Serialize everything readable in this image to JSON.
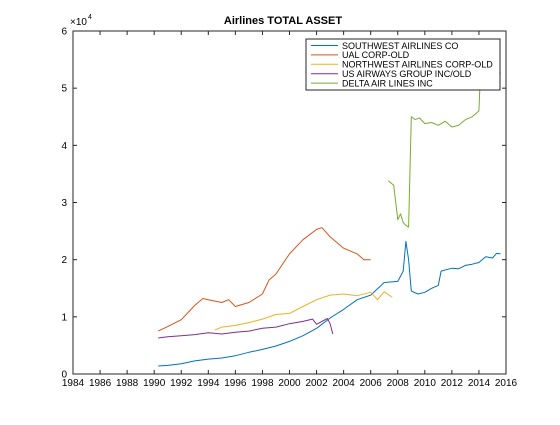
{
  "chart_data": {
    "type": "line",
    "title": "Airlines TOTAL ASSET",
    "xlabel": "",
    "ylabel": "",
    "xlim": [
      1984,
      2016
    ],
    "ylim": [
      0,
      60000
    ],
    "y_multiplier_label": "×10",
    "y_multiplier_exponent": "4",
    "x_ticks": [
      1984,
      1986,
      1988,
      1990,
      1992,
      1994,
      1996,
      1998,
      2000,
      2002,
      2004,
      2006,
      2008,
      2010,
      2012,
      2014,
      2016
    ],
    "x_tick_labels": [
      "1984",
      "1986",
      "1988",
      "1990",
      "1992",
      "1994",
      "1996",
      "1998",
      "2000",
      "2002",
      "2004",
      "2006",
      "2008",
      "2010",
      "2012",
      "2014",
      "2016"
    ],
    "y_ticks": [
      0,
      10000,
      20000,
      30000,
      40000,
      50000,
      60000
    ],
    "y_tick_labels": [
      "0",
      "1",
      "2",
      "3",
      "4",
      "5",
      "6"
    ],
    "grid": false,
    "legend_position": "top-right",
    "series": [
      {
        "name": "SOUTHWEST AIRLINES CO",
        "color": "#0072BD",
        "points": [
          [
            1990.3,
            1400
          ],
          [
            1991.0,
            1500
          ],
          [
            1992.0,
            1800
          ],
          [
            1993.0,
            2300
          ],
          [
            1994.0,
            2600
          ],
          [
            1995.0,
            2800
          ],
          [
            1996.0,
            3200
          ],
          [
            1997.0,
            3800
          ],
          [
            1998.0,
            4300
          ],
          [
            1999.0,
            4900
          ],
          [
            2000.0,
            5700
          ],
          [
            2001.0,
            6700
          ],
          [
            2002.0,
            8000
          ],
          [
            2003.0,
            9800
          ],
          [
            2004.0,
            11300
          ],
          [
            2005.0,
            13000
          ],
          [
            2006.0,
            13800
          ],
          [
            2007.0,
            16000
          ],
          [
            2008.0,
            16200
          ],
          [
            2008.4,
            18000
          ],
          [
            2008.6,
            23200
          ],
          [
            2008.8,
            20000
          ],
          [
            2009.0,
            14500
          ],
          [
            2009.5,
            14000
          ],
          [
            2010.0,
            14300
          ],
          [
            2010.5,
            15000
          ],
          [
            2011.0,
            15500
          ],
          [
            2011.2,
            18000
          ],
          [
            2012.0,
            18500
          ],
          [
            2012.5,
            18400
          ],
          [
            2013.0,
            19000
          ],
          [
            2013.5,
            19200
          ],
          [
            2014.0,
            19500
          ],
          [
            2014.5,
            20500
          ],
          [
            2015.0,
            20300
          ],
          [
            2015.3,
            21100
          ],
          [
            2015.6,
            21000
          ]
        ]
      },
      {
        "name": "UAL CORP-OLD",
        "color": "#D95319",
        "points": [
          [
            1990.3,
            7500
          ],
          [
            1991.0,
            8300
          ],
          [
            1992.0,
            9500
          ],
          [
            1993.0,
            12000
          ],
          [
            1993.6,
            13200
          ],
          [
            1994.0,
            13000
          ],
          [
            1995.0,
            12500
          ],
          [
            1995.5,
            13000
          ],
          [
            1996.0,
            11800
          ],
          [
            1997.0,
            12500
          ],
          [
            1998.0,
            14000
          ],
          [
            1998.5,
            16500
          ],
          [
            1999.0,
            17500
          ],
          [
            2000.0,
            21000
          ],
          [
            2001.0,
            23500
          ],
          [
            2002.0,
            25300
          ],
          [
            2002.4,
            25600
          ],
          [
            2003.0,
            24000
          ],
          [
            2004.0,
            22000
          ],
          [
            2005.0,
            21000
          ],
          [
            2005.5,
            20000
          ],
          [
            2006.0,
            20000
          ]
        ]
      },
      {
        "name": "NORTHWEST AIRLINES CORP-OLD",
        "color": "#EDB120",
        "points": [
          [
            1994.5,
            7700
          ],
          [
            1995.0,
            8200
          ],
          [
            1996.0,
            8500
          ],
          [
            1997.0,
            9000
          ],
          [
            1998.0,
            9600
          ],
          [
            1999.0,
            10400
          ],
          [
            2000.0,
            10600
          ],
          [
            2001.0,
            11800
          ],
          [
            2002.0,
            13000
          ],
          [
            2003.0,
            13800
          ],
          [
            2004.0,
            14000
          ],
          [
            2005.0,
            13700
          ],
          [
            2006.0,
            14300
          ],
          [
            2006.5,
            13000
          ],
          [
            2007.0,
            14400
          ],
          [
            2007.6,
            13400
          ]
        ]
      },
      {
        "name": "US AIRWAYS GROUP INC/OLD",
        "color": "#7E2F8E",
        "points": [
          [
            1990.3,
            6300
          ],
          [
            1991.0,
            6500
          ],
          [
            1992.0,
            6700
          ],
          [
            1993.0,
            6900
          ],
          [
            1994.0,
            7200
          ],
          [
            1995.0,
            7000
          ],
          [
            1996.0,
            7300
          ],
          [
            1997.0,
            7500
          ],
          [
            1998.0,
            8000
          ],
          [
            1999.0,
            8200
          ],
          [
            2000.0,
            8800
          ],
          [
            2001.0,
            9200
          ],
          [
            2001.7,
            9600
          ],
          [
            2002.0,
            8700
          ],
          [
            2002.8,
            9700
          ],
          [
            2003.0,
            8800
          ],
          [
            2003.2,
            7000
          ]
        ]
      },
      {
        "name": "DELTA AIR LINES INC",
        "color": "#77AC30",
        "points": [
          [
            2007.3,
            33800
          ],
          [
            2007.7,
            33000
          ],
          [
            2008.0,
            27000
          ],
          [
            2008.2,
            28000
          ],
          [
            2008.4,
            26500
          ],
          [
            2008.6,
            26000
          ],
          [
            2008.8,
            25700
          ],
          [
            2009.0,
            45000
          ],
          [
            2009.3,
            44500
          ],
          [
            2009.6,
            44800
          ],
          [
            2010.0,
            43800
          ],
          [
            2010.5,
            44000
          ],
          [
            2011.0,
            43500
          ],
          [
            2011.5,
            44200
          ],
          [
            2012.0,
            43200
          ],
          [
            2012.5,
            43500
          ],
          [
            2013.0,
            44500
          ],
          [
            2013.5,
            45000
          ],
          [
            2014.0,
            46000
          ],
          [
            2014.1,
            52000
          ],
          [
            2014.5,
            54000
          ],
          [
            2015.0,
            54500
          ],
          [
            2015.4,
            53500
          ],
          [
            2015.6,
            52500
          ]
        ]
      }
    ]
  }
}
